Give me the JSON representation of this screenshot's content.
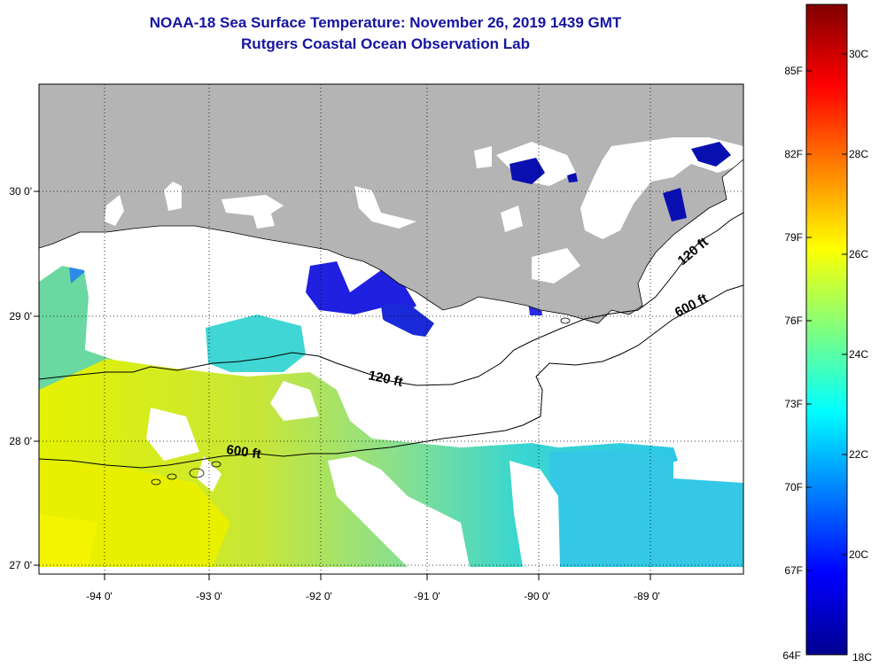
{
  "title": {
    "line1": "NOAA-18 Sea Surface Temperature:  November 26, 2019 1439 GMT",
    "line2": "Rutgers Coastal Ocean Observation Lab"
  },
  "map": {
    "lon_range": [
      -94.5,
      -88.3
    ],
    "lat_range": [
      26.95,
      30.85
    ],
    "lon_ticks": [
      {
        "value": -94,
        "label": "-94 0'"
      },
      {
        "value": -93,
        "label": "-93 0'"
      },
      {
        "value": -92,
        "label": "-92 0'"
      },
      {
        "value": -91,
        "label": "-91 0'"
      },
      {
        "value": -90,
        "label": "-90 0'"
      },
      {
        "value": -89,
        "label": "-89 0'"
      }
    ],
    "lat_ticks": [
      {
        "value": 27,
        "label": "27 0'"
      },
      {
        "value": 28,
        "label": "28 0'"
      },
      {
        "value": 29,
        "label": "29 0'"
      },
      {
        "value": 30,
        "label": "30 0'"
      }
    ],
    "land_color": "#b4b4b4",
    "no_data_color": "#ffffff",
    "contour_labels": [
      "120 ft",
      "120 ft",
      "600 ft",
      "600 ft"
    ]
  },
  "colorbar": {
    "fahrenheit": [
      "85F",
      "82F",
      "79F",
      "76F",
      "73F",
      "70F",
      "67F",
      "64F"
    ],
    "celsius": [
      "30C",
      "28C",
      "26C",
      "24C",
      "22C",
      "20C",
      "18C"
    ],
    "min_c": 18,
    "max_c": 31,
    "colormap": "jet"
  }
}
